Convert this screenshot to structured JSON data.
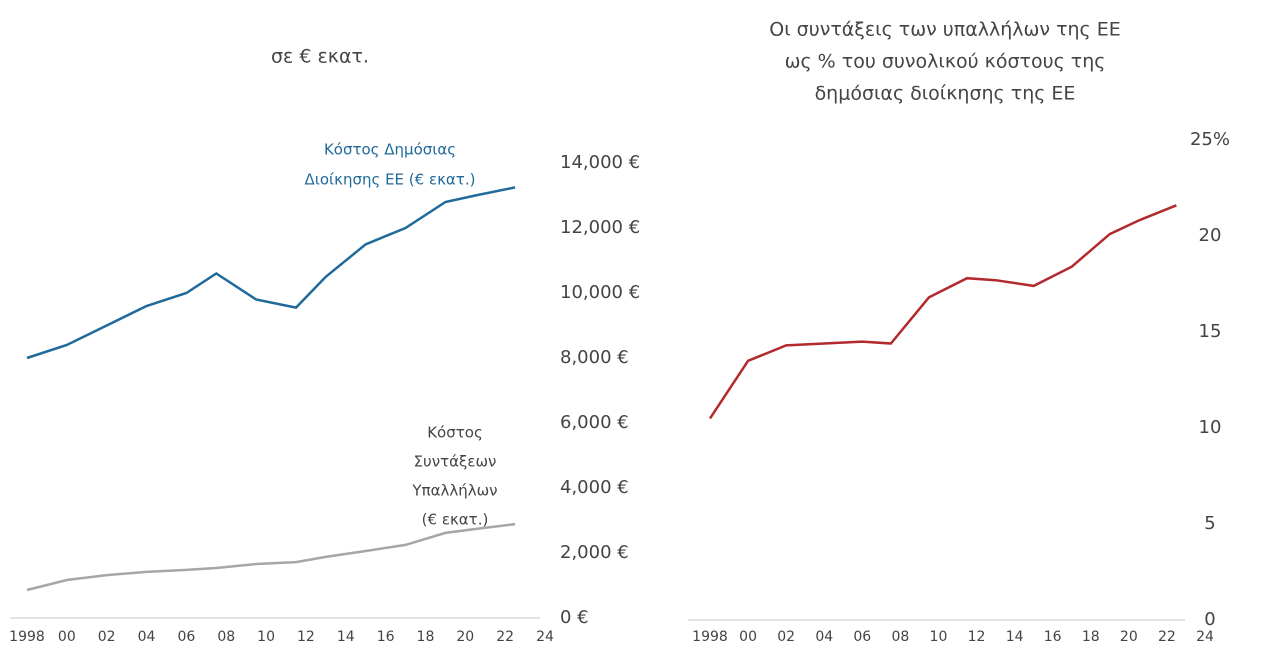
{
  "chart_data": [
    {
      "type": "line",
      "title": "σε € εκατ.",
      "x": [
        1998,
        2000,
        2002,
        2004,
        2006,
        2007.5,
        2009.5,
        2011.5,
        2013,
        2015,
        2017,
        2019,
        2020.5,
        2022.5
      ],
      "series": [
        {
          "name": [
            "Κόστος Δημόσιας",
            "Διοίκησης ΕΕ (€ εκατ.)"
          ],
          "color": "#1f6a9a",
          "values": [
            8000,
            8400,
            9000,
            9600,
            10000,
            10600,
            9800,
            9550,
            10500,
            11500,
            12000,
            12800,
            13000,
            13250
          ]
        },
        {
          "name": [
            "Κόστος",
            "Συντάξεων",
            "Υπαλλήλων",
            "(€ εκατ.)"
          ],
          "color": "#a6a6a6",
          "values": [
            860,
            1170,
            1320,
            1420,
            1480,
            1540,
            1660,
            1720,
            1880,
            2060,
            2250,
            2620,
            2740,
            2890
          ]
        }
      ],
      "xlim": [
        1998,
        2024
      ],
      "xticks": [
        1998,
        {
          "value": 2000,
          "label": "00"
        },
        {
          "value": 2002,
          "label": "02"
        },
        {
          "value": 2004,
          "label": "04"
        },
        {
          "value": 2006,
          "label": "06"
        },
        {
          "value": 2008,
          "label": "08"
        },
        {
          "value": 2010,
          "label": "10"
        },
        {
          "value": 2012,
          "label": "12"
        },
        {
          "value": 2014,
          "label": "14"
        },
        {
          "value": 2016,
          "label": "16"
        },
        {
          "value": 2018,
          "label": "18"
        },
        {
          "value": 2020,
          "label": "20"
        },
        {
          "value": 2022,
          "label": "22"
        },
        {
          "value": 2024,
          "label": "24"
        }
      ],
      "ylim": [
        0,
        14000
      ],
      "yticks": [
        {
          "value": 0,
          "label": "0 €"
        },
        {
          "value": 2000,
          "label": "2,000 €"
        },
        {
          "value": 4000,
          "label": "4,000 €"
        },
        {
          "value": 6000,
          "label": "6,000 €"
        },
        {
          "value": 8000,
          "label": "8,000 €"
        },
        {
          "value": 10000,
          "label": "10,000 €"
        },
        {
          "value": 12000,
          "label": "12,000 €"
        },
        {
          "value": 14000,
          "label": "14,000 €"
        }
      ]
    },
    {
      "type": "line",
      "title": [
        "Οι συντάξεις των υπαλλήλων της ΕΕ",
        "ως % του συνολικού κόστους της",
        "δημόσιας διοίκησης της ΕΕ"
      ],
      "x": [
        1998,
        2000,
        2002,
        2004,
        2006,
        2007.5,
        2009.5,
        2011.5,
        2013,
        2015,
        2017,
        2019,
        2020.5,
        2022.5
      ],
      "series": [
        {
          "color": "#b22a2e",
          "values": [
            10.5,
            13.5,
            14.3,
            14.4,
            14.5,
            14.4,
            16.8,
            17.8,
            17.7,
            17.4,
            18.4,
            20.1,
            20.8,
            21.6
          ]
        }
      ],
      "xlim": [
        1998,
        2024
      ],
      "xticks": [
        1998,
        {
          "value": 2000,
          "label": "00"
        },
        {
          "value": 2002,
          "label": "02"
        },
        {
          "value": 2004,
          "label": "04"
        },
        {
          "value": 2006,
          "label": "06"
        },
        {
          "value": 2008,
          "label": "08"
        },
        {
          "value": 2010,
          "label": "10"
        },
        {
          "value": 2012,
          "label": "12"
        },
        {
          "value": 2014,
          "label": "14"
        },
        {
          "value": 2016,
          "label": "16"
        },
        {
          "value": 2018,
          "label": "18"
        },
        {
          "value": 2020,
          "label": "20"
        },
        {
          "value": 2022,
          "label": "22"
        },
        {
          "value": 2024,
          "label": "24"
        }
      ],
      "ylim": [
        0,
        25
      ],
      "yticks": [
        0,
        5,
        10,
        15,
        20,
        {
          "value": 25,
          "label": "25%"
        }
      ]
    }
  ]
}
